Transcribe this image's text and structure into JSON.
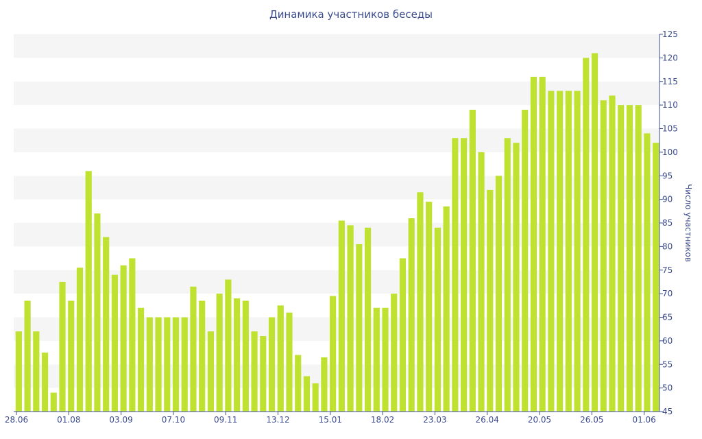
{
  "chart_data": {
    "type": "bar",
    "title": "Динамика участников беседы",
    "ylabel": "Число участников",
    "xlabel": "",
    "ylim": [
      45,
      125
    ],
    "y_ticks": [
      45,
      50,
      55,
      60,
      65,
      70,
      75,
      80,
      85,
      90,
      95,
      100,
      105,
      110,
      115,
      120,
      125
    ],
    "x_tick_labels": [
      "28.06",
      "01.08",
      "03.09",
      "07.10",
      "09.11",
      "13.12",
      "15.01",
      "18.02",
      "23.03",
      "26.04",
      "20.05",
      "26.05",
      "01.06"
    ],
    "grid": "horizontal bands",
    "legend": "none",
    "bar_color": "#bfe12f",
    "values": [
      62,
      68.5,
      62,
      57.5,
      49,
      72.5,
      68.5,
      75.5,
      96,
      87,
      82,
      74,
      76,
      77.5,
      67,
      65,
      65,
      65,
      65,
      65,
      71.5,
      68.5,
      62,
      70,
      73,
      69,
      68.5,
      62,
      61,
      65,
      67.5,
      66,
      57,
      52.5,
      51,
      56.5,
      69.5,
      85.5,
      84.5,
      80.5,
      84,
      67,
      67,
      70,
      77.5,
      86,
      91.5,
      89.5,
      84,
      88.5,
      103,
      103,
      109,
      100,
      92,
      95,
      103,
      102,
      109,
      116,
      116,
      113,
      113,
      113,
      113,
      120,
      121,
      111,
      112,
      110,
      110,
      110,
      104,
      102
    ]
  }
}
